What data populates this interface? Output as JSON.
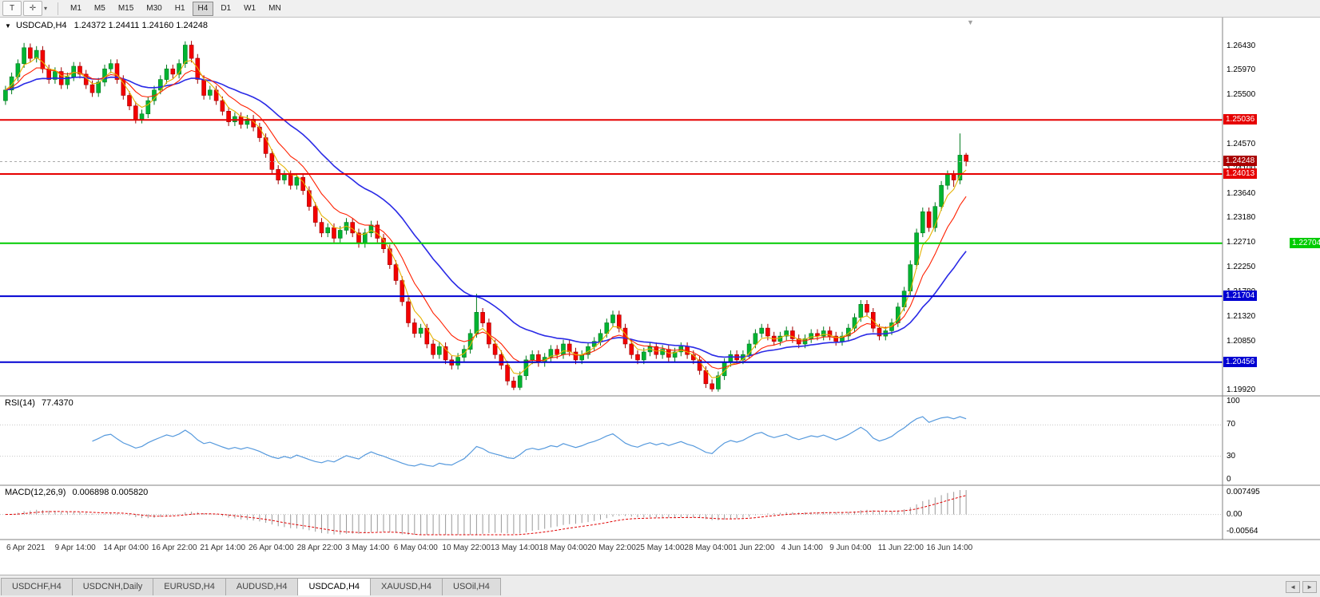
{
  "toolbar": {
    "t_button": "T",
    "timeframes": [
      "M1",
      "M5",
      "M15",
      "M30",
      "H1",
      "H4",
      "D1",
      "W1",
      "MN"
    ],
    "active_timeframe": "H4"
  },
  "icons": {
    "collapse_triangle": "▼",
    "crosshair": "✛",
    "dropdown_caret": "▾",
    "shift_marker": "▼",
    "scroll_left": "◄",
    "scroll_right": "►"
  },
  "main_chart": {
    "symbol_period": "USDCAD,H4",
    "ohlc": "1.24372 1.24411 1.24160 1.24248"
  },
  "price_axis_ticks": [
    "1.26430",
    "1.25970",
    "1.25500",
    "1.25030",
    "1.24570",
    "1.24100",
    "1.23640",
    "1.23180",
    "1.22710",
    "1.22250",
    "1.21780",
    "1.21320",
    "1.20850",
    "1.20390",
    "1.19920"
  ],
  "levels": [
    {
      "price": 1.25036,
      "label": "1.25036",
      "color": "#E60000",
      "type": "resistance",
      "edge_label": false
    },
    {
      "price": 1.24013,
      "label": "1.24013",
      "color": "#E60000",
      "type": "resistance",
      "edge_label": false
    },
    {
      "price": 1.22704,
      "label": "1.22704",
      "color": "#00CC00",
      "type": "support",
      "edge_label": true
    },
    {
      "price": 1.21704,
      "label": "1.21704",
      "color": "#0000D2",
      "type": "support",
      "edge_label": false
    },
    {
      "price": 1.20456,
      "label": "1.20456",
      "color": "#0000D2",
      "type": "support",
      "edge_label": false
    }
  ],
  "current_price": {
    "label": "1.24248",
    "price": 1.24248,
    "color": "#AA0000"
  },
  "rsi_panel": {
    "label": "RSI(14)",
    "value": "77.4370",
    "ticks": [
      {
        "v": 100,
        "label": "100"
      },
      {
        "v": 70,
        "label": "70"
      },
      {
        "v": 30,
        "label": "30"
      },
      {
        "v": 0,
        "label": "0"
      }
    ]
  },
  "macd_panel": {
    "label": "MACD(12,26,9)",
    "values": "0.006898 0.005820",
    "ticks": [
      {
        "v": 0.007495,
        "label": "0.007495"
      },
      {
        "v": 0,
        "label": "0.00"
      },
      {
        "v": -0.00564,
        "label": "-0.00564"
      }
    ]
  },
  "time_axis": [
    "6 Apr 2021",
    "9 Apr 14:00",
    "14 Apr 04:00",
    "16 Apr 22:00",
    "21 Apr 14:00",
    "26 Apr 04:00",
    "28 Apr 22:00",
    "3 May 14:00",
    "6 May 04:00",
    "10 May 22:00",
    "13 May 14:00",
    "18 May 04:00",
    "20 May 22:00",
    "25 May 14:00",
    "28 May 04:00",
    "1 Jun 22:00",
    "4 Jun 14:00",
    "9 Jun 04:00",
    "11 Jun 22:00",
    "16 Jun 14:00"
  ],
  "tabs": {
    "items": [
      "USDCHF,H4",
      "USDCNH,Daily",
      "EURUSD,H4",
      "AUDUSD,H4",
      "USDCAD,H4",
      "XAUUSD,H4",
      "USOil,H4"
    ],
    "active": "USDCAD,H4"
  },
  "colors": {
    "bull": "#00B432",
    "bull_stroke": "#007A1E",
    "bear": "#F40000",
    "bear_stroke": "#A00000",
    "ma_fast": "#E6B200",
    "ma_mid": "#FF2000",
    "ma_slow": "#2A2AE6",
    "rsi_line": "#5599DD",
    "rsi_level": "#c8c8c8",
    "macd_hist": "#9A9A9A",
    "macd_signal": "#E00000",
    "separator": "#808080",
    "current_dash": "#aaaaaa"
  },
  "chart_data": {
    "type": "candlestick",
    "symbol": "USDCAD",
    "period": "H4",
    "title": "USDCAD,H4 1.24372 1.24411 1.24160 1.24248",
    "ylim": [
      1.1982,
      1.2697
    ],
    "indicators": [
      "RSI(14) 77.4370",
      "MACD(12,26,9) 0.006898 0.005820"
    ],
    "levels": [
      1.25036,
      1.24013,
      1.22704,
      1.21704,
      1.20456
    ],
    "ohlc": [
      [
        1.254,
        1.2568,
        1.2532,
        1.256
      ],
      [
        1.256,
        1.2593,
        1.2552,
        1.2585
      ],
      [
        1.2585,
        1.2618,
        1.2577,
        1.261
      ],
      [
        1.261,
        1.2649,
        1.2602,
        1.264
      ],
      [
        1.264,
        1.2648,
        1.2612,
        1.262
      ],
      [
        1.262,
        1.2643,
        1.2612,
        1.2635
      ],
      [
        1.2635,
        1.2643,
        1.2592,
        1.26
      ],
      [
        1.26,
        1.2608,
        1.2572,
        1.258
      ],
      [
        1.258,
        1.2603,
        1.2572,
        1.2595
      ],
      [
        1.2595,
        1.2603,
        1.2562,
        1.257
      ],
      [
        1.257,
        1.2593,
        1.2562,
        1.2585
      ],
      [
        1.2585,
        1.2613,
        1.2577,
        1.2605
      ],
      [
        1.2605,
        1.2613,
        1.2582,
        1.259
      ],
      [
        1.259,
        1.2598,
        1.2562,
        1.257
      ],
      [
        1.257,
        1.2578,
        1.2547,
        1.2555
      ],
      [
        1.2555,
        1.2583,
        1.2547,
        1.2575
      ],
      [
        1.2575,
        1.2608,
        1.2567,
        1.26
      ],
      [
        1.26,
        1.2618,
        1.2592,
        1.261
      ],
      [
        1.261,
        1.2618,
        1.2572,
        1.258
      ],
      [
        1.258,
        1.2588,
        1.2542,
        1.255
      ],
      [
        1.255,
        1.2558,
        1.2522,
        1.253
      ],
      [
        1.253,
        1.2538,
        1.2497,
        1.2505
      ],
      [
        1.2505,
        1.2523,
        1.2497,
        1.2515
      ],
      [
        1.2515,
        1.2548,
        1.2507,
        1.254
      ],
      [
        1.254,
        1.2568,
        1.2532,
        1.256
      ],
      [
        1.256,
        1.2588,
        1.2552,
        1.258
      ],
      [
        1.258,
        1.2608,
        1.2572,
        1.26
      ],
      [
        1.26,
        1.2608,
        1.2582,
        1.259
      ],
      [
        1.259,
        1.2618,
        1.2582,
        1.261
      ],
      [
        1.261,
        1.2652,
        1.2602,
        1.2645
      ],
      [
        1.2645,
        1.2653,
        1.2612,
        1.262
      ],
      [
        1.262,
        1.2628,
        1.2572,
        1.258
      ],
      [
        1.258,
        1.2588,
        1.2542,
        1.255
      ],
      [
        1.255,
        1.2568,
        1.2542,
        1.256
      ],
      [
        1.256,
        1.2568,
        1.2532,
        1.254
      ],
      [
        1.254,
        1.2548,
        1.2512,
        1.252
      ],
      [
        1.252,
        1.2528,
        1.2492,
        1.25
      ],
      [
        1.25,
        1.2518,
        1.2492,
        1.251
      ],
      [
        1.251,
        1.2518,
        1.2487,
        1.2495
      ],
      [
        1.2495,
        1.2513,
        1.2487,
        1.2505
      ],
      [
        1.2505,
        1.2513,
        1.2482,
        1.249
      ],
      [
        1.249,
        1.2498,
        1.2462,
        1.247
      ],
      [
        1.247,
        1.2478,
        1.2432,
        1.244
      ],
      [
        1.244,
        1.2448,
        1.2402,
        1.241
      ],
      [
        1.241,
        1.2418,
        1.2382,
        1.239
      ],
      [
        1.239,
        1.2408,
        1.2382,
        1.24
      ],
      [
        1.24,
        1.2408,
        1.2372,
        1.238
      ],
      [
        1.238,
        1.2403,
        1.2372,
        1.2395
      ],
      [
        1.2395,
        1.2403,
        1.2362,
        1.237
      ],
      [
        1.237,
        1.2378,
        1.2332,
        1.234
      ],
      [
        1.234,
        1.2348,
        1.2302,
        1.231
      ],
      [
        1.231,
        1.2318,
        1.2282,
        1.229
      ],
      [
        1.229,
        1.2308,
        1.2282,
        1.23
      ],
      [
        1.23,
        1.2308,
        1.2272,
        1.228
      ],
      [
        1.228,
        1.2303,
        1.2272,
        1.2295
      ],
      [
        1.2295,
        1.2318,
        1.2287,
        1.231
      ],
      [
        1.231,
        1.2318,
        1.2282,
        1.229
      ],
      [
        1.229,
        1.2298,
        1.2262,
        1.227
      ],
      [
        1.227,
        1.2298,
        1.2262,
        1.229
      ],
      [
        1.229,
        1.2313,
        1.2282,
        1.2305
      ],
      [
        1.2305,
        1.2313,
        1.2272,
        1.228
      ],
      [
        1.228,
        1.2288,
        1.2252,
        1.226
      ],
      [
        1.226,
        1.2268,
        1.2222,
        1.223
      ],
      [
        1.223,
        1.2238,
        1.2192,
        1.22
      ],
      [
        1.22,
        1.2208,
        1.2152,
        1.216
      ],
      [
        1.216,
        1.2168,
        1.2112,
        1.212
      ],
      [
        1.212,
        1.2128,
        1.2092,
        1.21
      ],
      [
        1.21,
        1.2118,
        1.2092,
        1.211
      ],
      [
        1.211,
        1.2118,
        1.2072,
        1.208
      ],
      [
        1.208,
        1.2088,
        1.2052,
        1.206
      ],
      [
        1.206,
        1.2083,
        1.2052,
        1.2075
      ],
      [
        1.2075,
        1.2083,
        1.2042,
        1.205
      ],
      [
        1.205,
        1.2058,
        1.2032,
        1.204
      ],
      [
        1.204,
        1.2063,
        1.2032,
        1.2055
      ],
      [
        1.2055,
        1.2078,
        1.2047,
        1.207
      ],
      [
        1.207,
        1.2108,
        1.2062,
        1.21
      ],
      [
        1.21,
        1.2175,
        1.2092,
        1.214
      ],
      [
        1.214,
        1.2148,
        1.2112,
        1.212
      ],
      [
        1.212,
        1.2128,
        1.2072,
        1.208
      ],
      [
        1.208,
        1.2088,
        1.2052,
        1.206
      ],
      [
        1.206,
        1.2068,
        1.2032,
        1.204
      ],
      [
        1.204,
        1.2048,
        1.2002,
        1.201
      ],
      [
        1.201,
        1.2018,
        1.1993,
        1.1998
      ],
      [
        1.1998,
        1.2028,
        1.1993,
        1.202
      ],
      [
        1.202,
        1.2058,
        1.2012,
        1.205
      ],
      [
        1.205,
        1.2068,
        1.2042,
        1.206
      ],
      [
        1.206,
        1.2068,
        1.2037,
        1.2045
      ],
      [
        1.2045,
        1.2063,
        1.2037,
        1.2055
      ],
      [
        1.2055,
        1.2078,
        1.2047,
        1.207
      ],
      [
        1.207,
        1.2078,
        1.2052,
        1.206
      ],
      [
        1.206,
        1.2088,
        1.2052,
        1.208
      ],
      [
        1.208,
        1.2088,
        1.2057,
        1.2065
      ],
      [
        1.2065,
        1.2073,
        1.2042,
        1.205
      ],
      [
        1.205,
        1.2068,
        1.2042,
        1.206
      ],
      [
        1.206,
        1.2083,
        1.2052,
        1.2075
      ],
      [
        1.2075,
        1.2093,
        1.2067,
        1.2085
      ],
      [
        1.2085,
        1.2108,
        1.2077,
        1.21
      ],
      [
        1.21,
        1.2128,
        1.2092,
        1.212
      ],
      [
        1.212,
        1.2143,
        1.2112,
        1.2135
      ],
      [
        1.2135,
        1.2143,
        1.2102,
        1.211
      ],
      [
        1.211,
        1.2118,
        1.2072,
        1.208
      ],
      [
        1.208,
        1.2088,
        1.2052,
        1.206
      ],
      [
        1.206,
        1.2068,
        1.2042,
        1.205
      ],
      [
        1.205,
        1.2073,
        1.2042,
        1.2065
      ],
      [
        1.2065,
        1.2083,
        1.2057,
        1.2075
      ],
      [
        1.2075,
        1.2083,
        1.2052,
        1.206
      ],
      [
        1.206,
        1.2078,
        1.2052,
        1.207
      ],
      [
        1.207,
        1.2078,
        1.2047,
        1.2055
      ],
      [
        1.2055,
        1.2073,
        1.2047,
        1.2065
      ],
      [
        1.2065,
        1.2083,
        1.2057,
        1.2075
      ],
      [
        1.2075,
        1.2083,
        1.2052,
        1.206
      ],
      [
        1.206,
        1.2068,
        1.2042,
        1.205
      ],
      [
        1.205,
        1.2058,
        1.2022,
        1.203
      ],
      [
        1.203,
        1.2038,
        1.1997,
        1.2005
      ],
      [
        1.2005,
        1.2013,
        1.199,
        1.1995
      ],
      [
        1.1995,
        1.2028,
        1.199,
        1.202
      ],
      [
        1.202,
        1.2053,
        1.2012,
        1.2045
      ],
      [
        1.2045,
        1.2068,
        1.2037,
        1.206
      ],
      [
        1.206,
        1.2068,
        1.2042,
        1.205
      ],
      [
        1.205,
        1.2068,
        1.2042,
        1.206
      ],
      [
        1.206,
        1.2088,
        1.2052,
        1.208
      ],
      [
        1.208,
        1.2108,
        1.2072,
        1.21
      ],
      [
        1.21,
        1.2118,
        1.2092,
        1.211
      ],
      [
        1.211,
        1.2118,
        1.2087,
        1.2095
      ],
      [
        1.2095,
        1.2103,
        1.2077,
        1.2085
      ],
      [
        1.2085,
        1.2103,
        1.2077,
        1.2095
      ],
      [
        1.2095,
        1.2113,
        1.2087,
        1.2105
      ],
      [
        1.2105,
        1.2113,
        1.2082,
        1.209
      ],
      [
        1.209,
        1.2098,
        1.2072,
        1.208
      ],
      [
        1.208,
        1.2098,
        1.2072,
        1.209
      ],
      [
        1.209,
        1.2108,
        1.2082,
        1.21
      ],
      [
        1.21,
        1.2108,
        1.2087,
        1.2095
      ],
      [
        1.2095,
        1.2113,
        1.2087,
        1.2105
      ],
      [
        1.2105,
        1.2113,
        1.2087,
        1.2095
      ],
      [
        1.2095,
        1.2103,
        1.2077,
        1.2085
      ],
      [
        1.2085,
        1.2103,
        1.2077,
        1.2095
      ],
      [
        1.2095,
        1.2118,
        1.2087,
        1.211
      ],
      [
        1.211,
        1.2138,
        1.2102,
        1.213
      ],
      [
        1.213,
        1.2163,
        1.2122,
        1.2155
      ],
      [
        1.2155,
        1.2163,
        1.2132,
        1.214
      ],
      [
        1.214,
        1.2148,
        1.2102,
        1.211
      ],
      [
        1.211,
        1.2118,
        1.2087,
        1.2095
      ],
      [
        1.2095,
        1.2113,
        1.2087,
        1.2105
      ],
      [
        1.2105,
        1.2128,
        1.2097,
        1.212
      ],
      [
        1.212,
        1.2158,
        1.2112,
        1.215
      ],
      [
        1.215,
        1.2188,
        1.2142,
        1.218
      ],
      [
        1.218,
        1.2238,
        1.2172,
        1.223
      ],
      [
        1.223,
        1.2298,
        1.2222,
        1.229
      ],
      [
        1.229,
        1.2338,
        1.2282,
        1.233
      ],
      [
        1.233,
        1.2338,
        1.2292,
        1.23
      ],
      [
        1.23,
        1.2348,
        1.2292,
        1.234
      ],
      [
        1.234,
        1.2388,
        1.2332,
        1.238
      ],
      [
        1.238,
        1.2408,
        1.2372,
        1.24
      ],
      [
        1.24,
        1.2408,
        1.2377,
        1.239
      ],
      [
        1.239,
        1.2478,
        1.2382,
        1.2437
      ],
      [
        1.24372,
        1.24411,
        1.2416,
        1.24248
      ]
    ]
  }
}
